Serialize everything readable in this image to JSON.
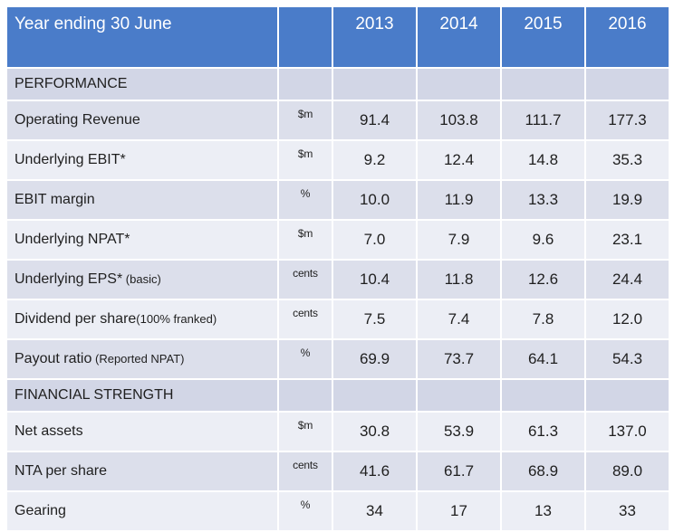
{
  "header": {
    "title": "Year ending 30 June",
    "years": [
      "2013",
      "2014",
      "2015",
      "2016"
    ]
  },
  "sections": [
    {
      "title": "PERFORMANCE",
      "rows": [
        {
          "label": "Operating Revenue",
          "note": "",
          "unit": "$m",
          "values": [
            "91.4",
            "103.8",
            "111.7",
            "177.3"
          ]
        },
        {
          "label": "Underlying EBIT*",
          "note": "",
          "unit": "$m",
          "values": [
            "9.2",
            "12.4",
            "14.8",
            "35.3"
          ]
        },
        {
          "label": "EBIT margin",
          "note": "",
          "unit": "%",
          "values": [
            "10.0",
            "11.9",
            "13.3",
            "19.9"
          ]
        },
        {
          "label": "Underlying NPAT*",
          "note": "",
          "unit": "$m",
          "values": [
            "7.0",
            "7.9",
            "9.6",
            "23.1"
          ]
        },
        {
          "label": "Underlying EPS*",
          "note": " (basic)",
          "unit": "cents",
          "values": [
            "10.4",
            "11.8",
            "12.6",
            "24.4"
          ]
        },
        {
          "label": "Dividend per share",
          "note": "(100% franked)",
          "unit": "cents",
          "values": [
            "7.5",
            "7.4",
            "7.8",
            "12.0"
          ]
        },
        {
          "label": "Payout ratio",
          "note": " (Reported NPAT)",
          "unit": "%",
          "values": [
            "69.9",
            "73.7",
            "64.1",
            "54.3"
          ]
        }
      ]
    },
    {
      "title": "FINANCIAL STRENGTH",
      "rows": [
        {
          "label": "Net assets",
          "note": "",
          "unit": "$m",
          "values": [
            "30.8",
            "53.9",
            "61.3",
            "137.0"
          ]
        },
        {
          "label": "NTA per share",
          "note": "",
          "unit": "cents",
          "values": [
            "41.6",
            "61.7",
            "68.9",
            "89.0"
          ]
        },
        {
          "label": "Gearing",
          "note": "",
          "unit": "%",
          "values": [
            "34",
            "17",
            "13",
            "33"
          ]
        }
      ]
    }
  ]
}
